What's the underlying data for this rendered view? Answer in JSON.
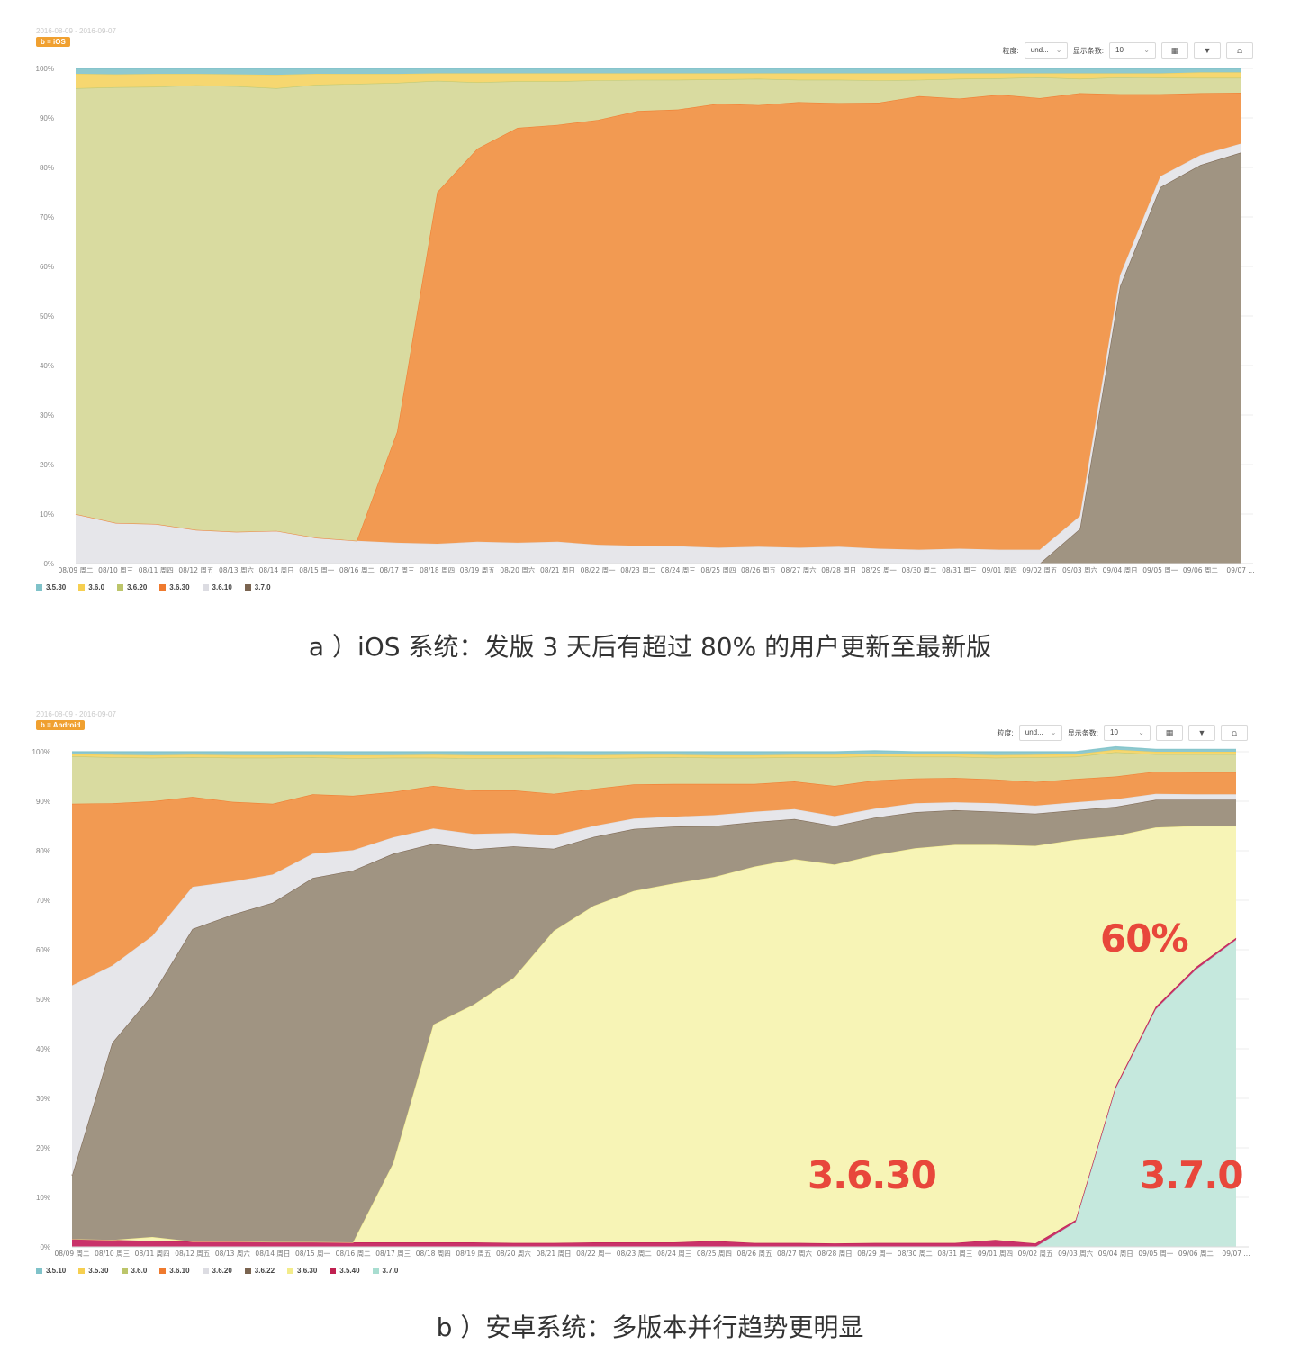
{
  "chart_data": [
    {
      "type": "area",
      "stacked": true,
      "percent": true,
      "date_range": "2016-08-09 - 2016-09-07",
      "badge": "b = iOS",
      "toolbar": {
        "granularity_label": "粒度:",
        "granularity_value": "und...",
        "rows_label": "显示条数:",
        "rows_value": "10"
      },
      "caption": "a ）iOS 系统：发版 3 天后有超过 80% 的用户更新至最新版",
      "ylim": [
        0,
        100
      ],
      "yticks": [
        "0%",
        "10%",
        "20%",
        "30%",
        "40%",
        "50%",
        "60%",
        "70%",
        "80%",
        "90%",
        "100%"
      ],
      "grid": true,
      "legend_position": "bottom-left",
      "x": [
        "08/09 周二",
        "08/10 周三",
        "08/11 周四",
        "08/12 周五",
        "08/13 周六",
        "08/14 周日",
        "08/15 周一",
        "08/16 周二",
        "08/17 周三",
        "08/18 周四",
        "08/19 周五",
        "08/20 周六",
        "08/21 周日",
        "08/22 周一",
        "08/23 周二",
        "08/24 周三",
        "08/25 周四",
        "08/26 周五",
        "08/27 周六",
        "08/28 周日",
        "08/29 周一",
        "08/30 周二",
        "08/31 周三",
        "09/01 周四",
        "09/02 周五",
        "09/03 周六",
        "09/04 周日",
        "09/05 周一",
        "09/06 周二",
        "09/07 ..."
      ],
      "series": [
        {
          "name": "3.7.0",
          "color": "#a09482",
          "values": [
            0,
            0,
            0,
            0,
            0,
            0,
            0,
            0,
            0,
            0,
            0,
            0,
            0,
            0,
            0,
            0,
            0,
            0,
            0,
            0,
            0,
            0,
            0,
            0,
            0,
            7,
            56,
            76,
            80.5,
            83
          ]
        },
        {
          "name": "3.6.10",
          "color": "#e6e6ea",
          "values": [
            10,
            8.2,
            8,
            6.8,
            6.4,
            6.6,
            5.2,
            4.6,
            4.2,
            4,
            4.4,
            4.2,
            4.4,
            3.8,
            3.6,
            3.5,
            3.2,
            3.4,
            3.2,
            3.4,
            3,
            2.8,
            3,
            2.8,
            2.8,
            2.6,
            2.2,
            2.2,
            2,
            1.8
          ]
        },
        {
          "name": "3.6.30",
          "color": "#f29a52",
          "values": [
            0,
            0,
            0,
            0,
            0,
            0,
            0,
            0,
            22.4,
            71,
            79.4,
            83.8,
            84.2,
            85.8,
            87.8,
            88.2,
            89.7,
            89.2,
            90,
            89.6,
            90.1,
            91.6,
            90.9,
            91.9,
            91.2,
            85.4,
            36.6,
            16.6,
            12.5,
            10.3
          ]
        },
        {
          "name": "3.6.20",
          "color": "#d9dba0",
          "values": [
            86,
            88,
            88.3,
            89.8,
            90,
            89.4,
            91.5,
            92.3,
            70.5,
            22.5,
            13.4,
            9.4,
            8.8,
            8,
            6.3,
            6,
            4.9,
            5.3,
            4.5,
            4.7,
            4.5,
            3.3,
            4,
            3.3,
            4.2,
            2.9,
            3.4,
            3.3,
            3.1,
            3
          ]
        },
        {
          "name": "3.6.0",
          "color": "#f6d770",
          "values": [
            2.9,
            2.6,
            2.6,
            2.3,
            2.4,
            2.7,
            2.2,
            2,
            1.8,
            1.5,
            1.8,
            1.6,
            1.6,
            1.4,
            1.3,
            1.3,
            1.2,
            1.1,
            1.3,
            1.3,
            1.4,
            1.3,
            1.1,
            1,
            0.8,
            1.1,
            0.8,
            0.9,
            1.1,
            1.1
          ]
        },
        {
          "name": "3.5.30",
          "color": "#8fc9cf",
          "values": [
            1.1,
            1.2,
            1.1,
            1.1,
            1.2,
            1.3,
            1.1,
            1.1,
            1.1,
            1,
            1,
            1,
            1,
            1,
            1,
            1,
            1,
            1,
            1,
            1,
            1,
            1,
            1,
            1,
            1,
            1,
            1,
            1,
            0.8,
            0.8
          ]
        }
      ],
      "legend": [
        {
          "name": "3.5.30",
          "color": "#7fc2c9"
        },
        {
          "name": "3.6.0",
          "color": "#f6cf50"
        },
        {
          "name": "3.6.20",
          "color": "#bcc56a"
        },
        {
          "name": "3.6.30",
          "color": "#ef7a2e"
        },
        {
          "name": "3.6.10",
          "color": "#dcdce2"
        },
        {
          "name": "3.7.0",
          "color": "#7a6450"
        }
      ]
    },
    {
      "type": "area",
      "stacked": true,
      "percent": true,
      "date_range": "2016-08-09 - 2016-09-07",
      "badge": "b = Android",
      "toolbar": {
        "granularity_label": "粒度:",
        "granularity_value": "und...",
        "rows_label": "显示条数:",
        "rows_value": "10"
      },
      "caption": "b ）安卓系统：多版本并行趋势更明显",
      "ylim": [
        0,
        100
      ],
      "yticks": [
        "0%",
        "10%",
        "20%",
        "30%",
        "40%",
        "50%",
        "60%",
        "70%",
        "80%",
        "90%",
        "100%"
      ],
      "grid": true,
      "legend_position": "bottom-left",
      "annotations": [
        {
          "text": "60%",
          "series": "3.7.0"
        },
        {
          "text": "3.6.30",
          "series": "3.6.30"
        },
        {
          "text": "3.7.0",
          "series": "3.7.0"
        }
      ],
      "x": [
        "08/09 周二",
        "08/10 周三",
        "08/11 周四",
        "08/12 周五",
        "08/13 周六",
        "08/14 周日",
        "08/15 周一",
        "08/16 周二",
        "08/17 周三",
        "08/18 周四",
        "08/19 周五",
        "08/20 周六",
        "08/21 周日",
        "08/22 周一",
        "08/23 周二",
        "08/24 周三",
        "08/25 周四",
        "08/26 周五",
        "08/27 周六",
        "08/28 周日",
        "08/29 周一",
        "08/30 周二",
        "08/31 周三",
        "09/01 周四",
        "09/02 周五",
        "09/03 周六",
        "09/04 周日",
        "09/05 周一",
        "09/06 周二",
        "09/07 ..."
      ],
      "series": [
        {
          "name": "3.7.0",
          "color": "#c5e8dd",
          "values": [
            0,
            0,
            0,
            0,
            0,
            0,
            0,
            0,
            0,
            0,
            0,
            0,
            0,
            0,
            0,
            0,
            0,
            0,
            0,
            0,
            0,
            0,
            0,
            0,
            0,
            5,
            32,
            48,
            56,
            62
          ]
        },
        {
          "name": "3.5.40",
          "color": "#c9326a",
          "values": [
            1.6,
            1.4,
            1.2,
            1.1,
            1.1,
            1,
            1,
            0.9,
            0.9,
            0.9,
            0.9,
            0.8,
            0.8,
            0.9,
            0.9,
            0.9,
            1.2,
            0.8,
            0.8,
            0.7,
            0.8,
            0.8,
            0.8,
            1.4,
            0.7,
            0.4,
            0.4,
            0.5,
            0.5,
            0.4
          ]
        },
        {
          "name": "3.6.30",
          "color": "#f7f4b6",
          "values": [
            0,
            0,
            0.8,
            0,
            0,
            0,
            0,
            0,
            16,
            44,
            48,
            53.5,
            63,
            68,
            71,
            72.5,
            73.5,
            76,
            77.5,
            76.5,
            78.3,
            79.7,
            80.4,
            79.8,
            80.3,
            76.8,
            50.6,
            36.2,
            28.5,
            22.6
          ]
        },
        {
          "name": "3.6.22",
          "color": "#a09482",
          "values": [
            12.8,
            39.8,
            48.9,
            63.1,
            66,
            68.5,
            73.5,
            75.1,
            62.5,
            36.5,
            31.4,
            26.6,
            16.6,
            13.9,
            12.5,
            11.5,
            10.3,
            9,
            8.1,
            7.8,
            7.6,
            7.3,
            7,
            6.7,
            6.5,
            6,
            5.9,
            5.6,
            5.3,
            5.3
          ]
        },
        {
          "name": "3.6.20",
          "color": "#e6e6ea",
          "values": [
            38.4,
            15.6,
            11.9,
            8.5,
            6.7,
            5.7,
            4.9,
            4.1,
            3.3,
            3.1,
            3.1,
            2.7,
            2.7,
            2.2,
            2.1,
            2,
            2.2,
            2.1,
            2,
            2,
            1.8,
            1.8,
            1.6,
            1.7,
            1.6,
            1.6,
            1.5,
            1.2,
            1.1,
            1.1
          ]
        },
        {
          "name": "3.6.10",
          "color": "#f29a52",
          "values": [
            36.7,
            32.8,
            27.2,
            18.2,
            16.1,
            14.3,
            12,
            11,
            9.2,
            8.6,
            8.8,
            8.6,
            8.4,
            7.5,
            6.9,
            6.6,
            6.3,
            5.6,
            5.6,
            6.1,
            5.7,
            5,
            4.9,
            4.8,
            4.8,
            4.7,
            4.6,
            4.5,
            4.5,
            4.5
          ]
        },
        {
          "name": "3.6.0",
          "color": "#d9dba0",
          "values": [
            9.6,
            9.3,
            8.8,
            8,
            8.9,
            9.3,
            7.5,
            7.6,
            6.9,
            5.7,
            6.5,
            6.5,
            7.3,
            6.2,
            5.4,
            5.4,
            5.3,
            5.3,
            4.9,
            5.8,
            4.9,
            4.4,
            4.3,
            4.4,
            5,
            4.5,
            4.9,
            3.5,
            3.6,
            3.6
          ]
        },
        {
          "name": "3.5.30",
          "color": "#f6d770",
          "values": [
            0.4,
            0.5,
            0.5,
            0.5,
            0.5,
            0.5,
            0.4,
            0.6,
            0.5,
            0.6,
            0.6,
            0.6,
            0.5,
            0.6,
            0.6,
            0.5,
            0.5,
            0.5,
            0.5,
            0.5,
            0.5,
            0.5,
            0.5,
            0.5,
            0.5,
            0.5,
            0.5,
            0.5,
            0.5,
            0.5
          ]
        },
        {
          "name": "3.5.10",
          "color": "#8fc9cf",
          "values": [
            0.5,
            0.6,
            0.7,
            0.6,
            0.7,
            0.7,
            0.7,
            0.7,
            0.7,
            0.6,
            0.7,
            0.7,
            0.7,
            0.7,
            0.6,
            0.6,
            0.7,
            0.7,
            0.6,
            0.6,
            0.6,
            0.5,
            0.5,
            0.7,
            0.6,
            0.5,
            0.6,
            0.5,
            0.5,
            0.5
          ]
        }
      ],
      "legend": [
        {
          "name": "3.5.10",
          "color": "#7fc2c9"
        },
        {
          "name": "3.5.30",
          "color": "#f6cf50"
        },
        {
          "name": "3.6.0",
          "color": "#bcc56a"
        },
        {
          "name": "3.6.10",
          "color": "#ef7a2e"
        },
        {
          "name": "3.6.20",
          "color": "#dcdce2"
        },
        {
          "name": "3.6.22",
          "color": "#7a6450"
        },
        {
          "name": "3.6.30",
          "color": "#f3ec8a"
        },
        {
          "name": "3.5.40",
          "color": "#c02050"
        },
        {
          "name": "3.7.0",
          "color": "#a8ddd0"
        }
      ]
    }
  ]
}
